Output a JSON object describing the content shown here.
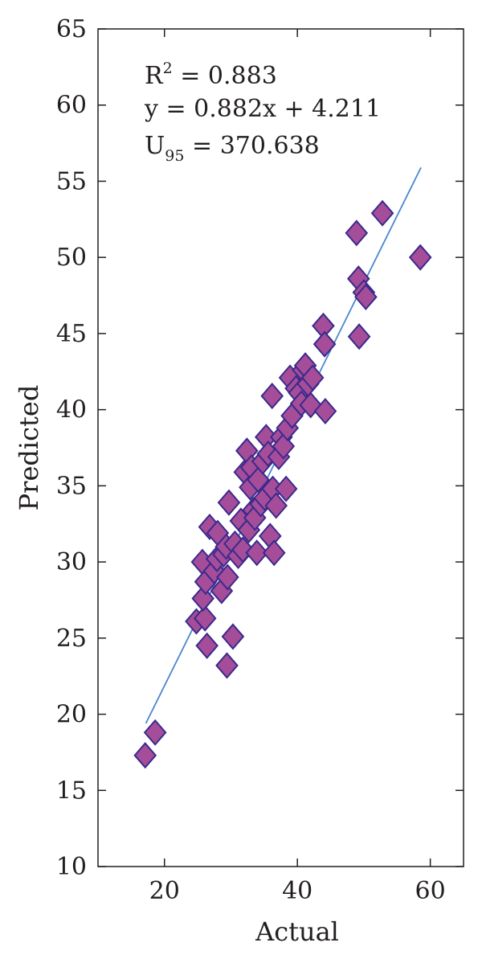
{
  "chart_data": {
    "type": "scatter",
    "title": "",
    "xlabel": "Actual",
    "ylabel": "Predicted",
    "xlim": [
      10,
      65
    ],
    "ylim": [
      10,
      65
    ],
    "xticks": [
      20,
      40,
      60
    ],
    "yticks": [
      10,
      15,
      20,
      25,
      30,
      35,
      40,
      45,
      50,
      55,
      60,
      65
    ],
    "grid": false,
    "marker": "diamond",
    "marker_color": "#a64d99",
    "marker_edge_color": "#3a2a8c",
    "line_color": "#4a86d0",
    "annotations": [
      {
        "prefix": "R",
        "sup": "2",
        "sub": "",
        "suffix": " = 0.883"
      },
      {
        "prefix": "y = 0.882x + 4.211",
        "sup": "",
        "sub": "",
        "suffix": ""
      },
      {
        "prefix": "U",
        "sup": "",
        "sub": "95",
        "suffix": " = 370.638"
      }
    ],
    "fit_line": {
      "x": [
        17.2,
        58.6
      ],
      "y": [
        19.4,
        55.9
      ]
    },
    "points": [
      {
        "x": 17.1,
        "y": 17.3
      },
      {
        "x": 18.6,
        "y": 18.8
      },
      {
        "x": 24.8,
        "y": 26.1
      },
      {
        "x": 26.1,
        "y": 26.3
      },
      {
        "x": 25.8,
        "y": 27.6
      },
      {
        "x": 26.4,
        "y": 24.5
      },
      {
        "x": 25.7,
        "y": 30.0
      },
      {
        "x": 26.2,
        "y": 28.7
      },
      {
        "x": 26.8,
        "y": 32.3
      },
      {
        "x": 27.5,
        "y": 29.4
      },
      {
        "x": 27.9,
        "y": 30.2
      },
      {
        "x": 28.0,
        "y": 31.9
      },
      {
        "x": 28.6,
        "y": 28.1
      },
      {
        "x": 28.9,
        "y": 30.5
      },
      {
        "x": 29.3,
        "y": 31.0
      },
      {
        "x": 29.5,
        "y": 29.0
      },
      {
        "x": 29.4,
        "y": 23.2
      },
      {
        "x": 29.7,
        "y": 33.9
      },
      {
        "x": 30.3,
        "y": 25.1
      },
      {
        "x": 30.6,
        "y": 31.2
      },
      {
        "x": 31.1,
        "y": 30.4
      },
      {
        "x": 31.5,
        "y": 32.7
      },
      {
        "x": 31.8,
        "y": 30.8
      },
      {
        "x": 32.1,
        "y": 35.9
      },
      {
        "x": 32.4,
        "y": 37.3
      },
      {
        "x": 32.7,
        "y": 32.1
      },
      {
        "x": 32.9,
        "y": 34.9
      },
      {
        "x": 33.1,
        "y": 36.2
      },
      {
        "x": 33.4,
        "y": 33.4
      },
      {
        "x": 33.6,
        "y": 32.9
      },
      {
        "x": 33.9,
        "y": 30.6
      },
      {
        "x": 34.1,
        "y": 35.4
      },
      {
        "x": 34.5,
        "y": 33.8
      },
      {
        "x": 34.8,
        "y": 36.6
      },
      {
        "x": 35.1,
        "y": 34.2
      },
      {
        "x": 35.3,
        "y": 38.2
      },
      {
        "x": 35.6,
        "y": 37.1
      },
      {
        "x": 35.9,
        "y": 31.7
      },
      {
        "x": 36.2,
        "y": 40.9
      },
      {
        "x": 36.3,
        "y": 34.8
      },
      {
        "x": 36.5,
        "y": 30.6
      },
      {
        "x": 36.8,
        "y": 33.7
      },
      {
        "x": 37.2,
        "y": 36.9
      },
      {
        "x": 37.6,
        "y": 38.2
      },
      {
        "x": 37.9,
        "y": 37.6
      },
      {
        "x": 38.3,
        "y": 34.8
      },
      {
        "x": 38.5,
        "y": 38.8
      },
      {
        "x": 38.9,
        "y": 42.1
      },
      {
        "x": 39.2,
        "y": 39.6
      },
      {
        "x": 39.8,
        "y": 41.4
      },
      {
        "x": 40.3,
        "y": 41.1
      },
      {
        "x": 40.6,
        "y": 40.4
      },
      {
        "x": 40.9,
        "y": 42.6
      },
      {
        "x": 41.2,
        "y": 42.9
      },
      {
        "x": 41.6,
        "y": 41.7
      },
      {
        "x": 42.0,
        "y": 40.3
      },
      {
        "x": 42.3,
        "y": 42.1
      },
      {
        "x": 43.9,
        "y": 45.5
      },
      {
        "x": 44.1,
        "y": 44.3
      },
      {
        "x": 44.2,
        "y": 39.9
      },
      {
        "x": 48.9,
        "y": 51.6
      },
      {
        "x": 49.2,
        "y": 48.6
      },
      {
        "x": 49.3,
        "y": 44.8
      },
      {
        "x": 50.0,
        "y": 47.7
      },
      {
        "x": 50.3,
        "y": 47.4
      },
      {
        "x": 52.8,
        "y": 52.9
      },
      {
        "x": 58.5,
        "y": 50.0
      }
    ]
  }
}
